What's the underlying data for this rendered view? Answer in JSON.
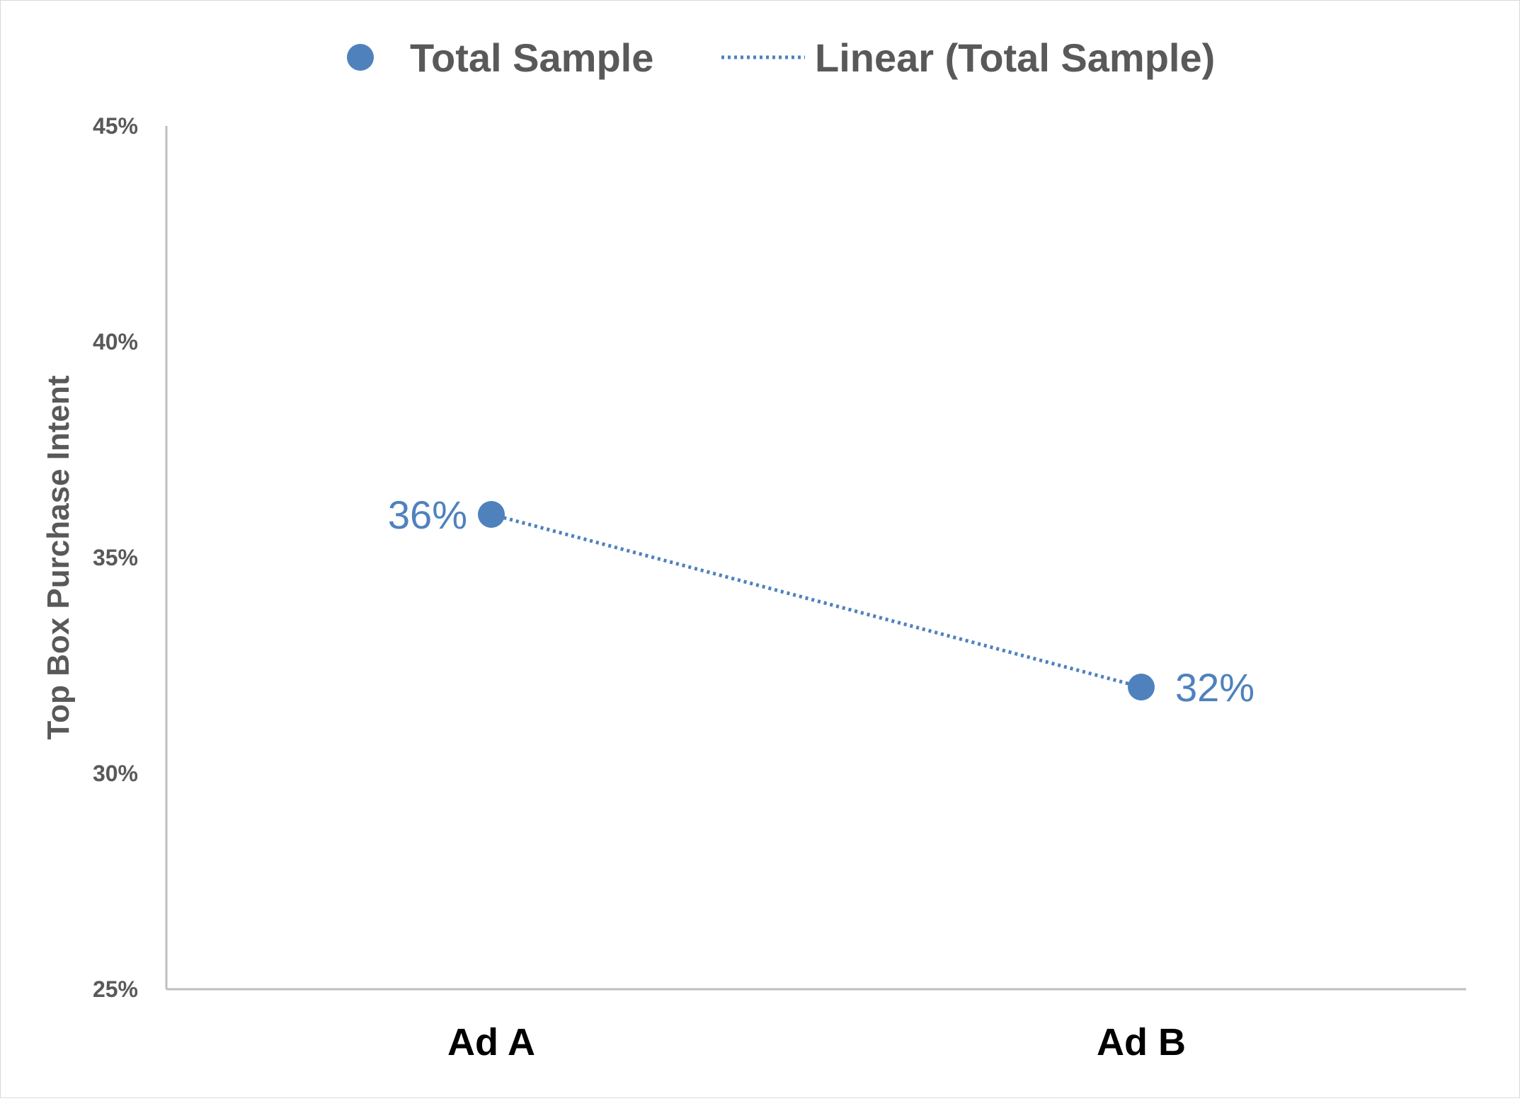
{
  "chart_data": {
    "type": "scatter",
    "title": "",
    "xlabel": "",
    "ylabel": "Top Box Purchase Intent",
    "categories": [
      "Ad A",
      "Ad B"
    ],
    "series": [
      {
        "name": "Total Sample",
        "values": [
          0.36,
          0.32
        ],
        "data_labels": [
          "36%",
          "32%"
        ],
        "color": "#4F81BD"
      }
    ],
    "trendline": {
      "name": "Linear (Total Sample)",
      "type": "linear",
      "style": "dotted",
      "color": "#4F81BD"
    },
    "ylim": [
      0.25,
      0.45
    ],
    "yticks": [
      0.25,
      0.3,
      0.35,
      0.4,
      0.45
    ],
    "ytick_labels": [
      "25%",
      "30%",
      "35%",
      "40%",
      "45%"
    ],
    "grid": false,
    "legend_position": "top"
  },
  "legend": {
    "series_label": "Total Sample",
    "trend_label": "Linear (Total Sample)"
  },
  "colors": {
    "series": "#4F81BD",
    "axis": "#bfbfbf",
    "text": "#595959"
  }
}
